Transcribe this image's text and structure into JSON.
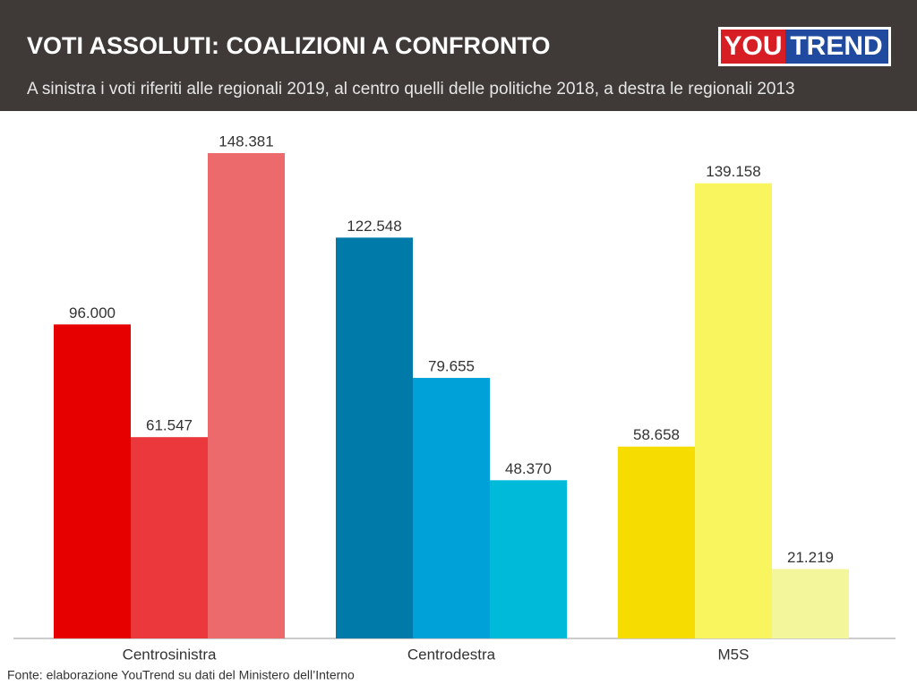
{
  "chart_data": {
    "type": "bar",
    "title": "VOTI ASSOLUTI: COALIZIONI A CONFRONTO",
    "subtitle": "A sinistra i voti riferiti alle regionali 2019, al centro quelli delle politiche 2018, a destra le regionali 2013",
    "logo": {
      "left": "YOU",
      "right": "TREND"
    },
    "source": "Fonte: elaborazione YouTrend su dati del Ministero dell’Interno",
    "categories": [
      "Centrosinistra",
      "Centrodestra",
      "M5S"
    ],
    "series": [
      {
        "colors": [
          "#e60000",
          "#007aa8",
          "#f7dc00"
        ],
        "values": [
          96000,
          122548,
          58658
        ],
        "value_labels": [
          "96.000",
          "122.548",
          "58.658"
        ]
      },
      {
        "colors": [
          "#ea383d",
          "#00a0d8",
          "#f8f55e"
        ],
        "values": [
          61547,
          79655,
          139158
        ],
        "value_labels": [
          "61.547",
          "79.655",
          "139.158"
        ]
      },
      {
        "colors": [
          "#ec6a6b",
          "#00bad9",
          "#f3f69a"
        ],
        "values": [
          148381,
          48370,
          21219
        ],
        "value_labels": [
          "148.381",
          "48.370",
          "21.219"
        ]
      }
    ]
  }
}
